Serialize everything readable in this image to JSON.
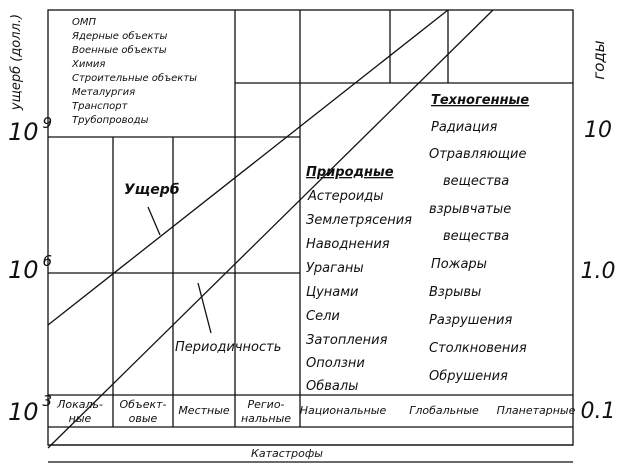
{
  "left_axis": {
    "title": "ущерб (долл.)",
    "ticks": [
      {
        "base": "10",
        "exp": "9"
      },
      {
        "base": "10",
        "exp": "6"
      },
      {
        "base": "10",
        "exp": "3"
      }
    ]
  },
  "right_axis": {
    "title": "годы",
    "ticks": [
      "10",
      "1.0",
      "0.1"
    ]
  },
  "objects_list": [
    "ОМП",
    "Ядерные объекты",
    "Военные объекты",
    "Химия",
    "Строительные объекты",
    "Металургия",
    "Транспорт",
    "Трубопроводы"
  ],
  "line_labels": {
    "damage": "Ущерб",
    "periodicity": "Периодичность"
  },
  "natural": {
    "header": "Природные",
    "items": [
      "Астероиды",
      "Землетрясения",
      "Наводнения",
      "Ураганы",
      "Цунами",
      "Сели",
      "Затопления",
      "Оползни",
      "Обвалы"
    ]
  },
  "technogenic": {
    "header": "Техногенные",
    "items": [
      "Радиация",
      "Отравляющие",
      "вещества",
      "взрывчатые",
      "вещества",
      "Пожары",
      "Взрывы",
      "Разрушения",
      "Столкновения",
      "Обрушения"
    ]
  },
  "scale": {
    "local": [
      "Локаль-",
      "ные"
    ],
    "object": [
      "Объект-",
      "овые"
    ],
    "place": "Местные",
    "regional": [
      "Регио-",
      "нальные"
    ],
    "national": "Национальные",
    "global": "Глобальные",
    "planetary": "Планетарные"
  },
  "bottom_label": "Катастрофы"
}
